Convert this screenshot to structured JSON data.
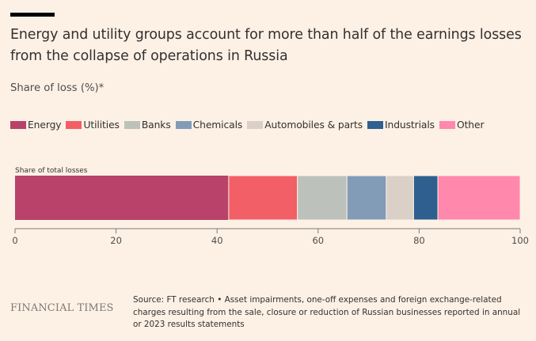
{
  "header": {
    "title": "Energy and utility groups account for more than half of the earnings losses from the collapse of operations in Russia",
    "subtitle": "Share of loss (%)*"
  },
  "legend": [
    {
      "label": "Energy",
      "color": "#b8426a"
    },
    {
      "label": "Utilities",
      "color": "#f25f66"
    },
    {
      "label": "Banks",
      "color": "#bcc2bb"
    },
    {
      "label": "Chemicals",
      "color": "#829cb8"
    },
    {
      "label": "Automobiles & parts",
      "color": "#dbd0c7"
    },
    {
      "label": "Industrials",
      "color": "#2f5f8f"
    },
    {
      "label": "Other",
      "color": "#ff88ac"
    }
  ],
  "chart_data": {
    "type": "bar",
    "orientation": "horizontal-stacked",
    "title": "Energy and utility groups account for more than half of the earnings losses from the collapse of operations in Russia",
    "ylabel": "Share of loss (%)*",
    "categories": [
      "Share of total losses"
    ],
    "series": [
      {
        "name": "Energy",
        "values": [
          42.3
        ]
      },
      {
        "name": "Utilities",
        "values": [
          13.6
        ]
      },
      {
        "name": "Banks",
        "values": [
          9.8
        ]
      },
      {
        "name": "Chemicals",
        "values": [
          7.8
        ]
      },
      {
        "name": "Automobiles & parts",
        "values": [
          5.4
        ]
      },
      {
        "name": "Industrials",
        "values": [
          4.8
        ]
      },
      {
        "name": "Other",
        "values": [
          16.3
        ]
      }
    ],
    "xlim": [
      0,
      100
    ],
    "xticks": [
      0,
      20,
      40,
      60,
      80,
      100
    ],
    "grid": false
  },
  "footer": {
    "brand": "FINANCIAL TIMES",
    "source": "Source: FT research • Asset impairments, one-off expenses and foreign exchange-related charges resulting from the sale, closure or reduction of Russian businesses reported in annual or 2023 results statements"
  }
}
